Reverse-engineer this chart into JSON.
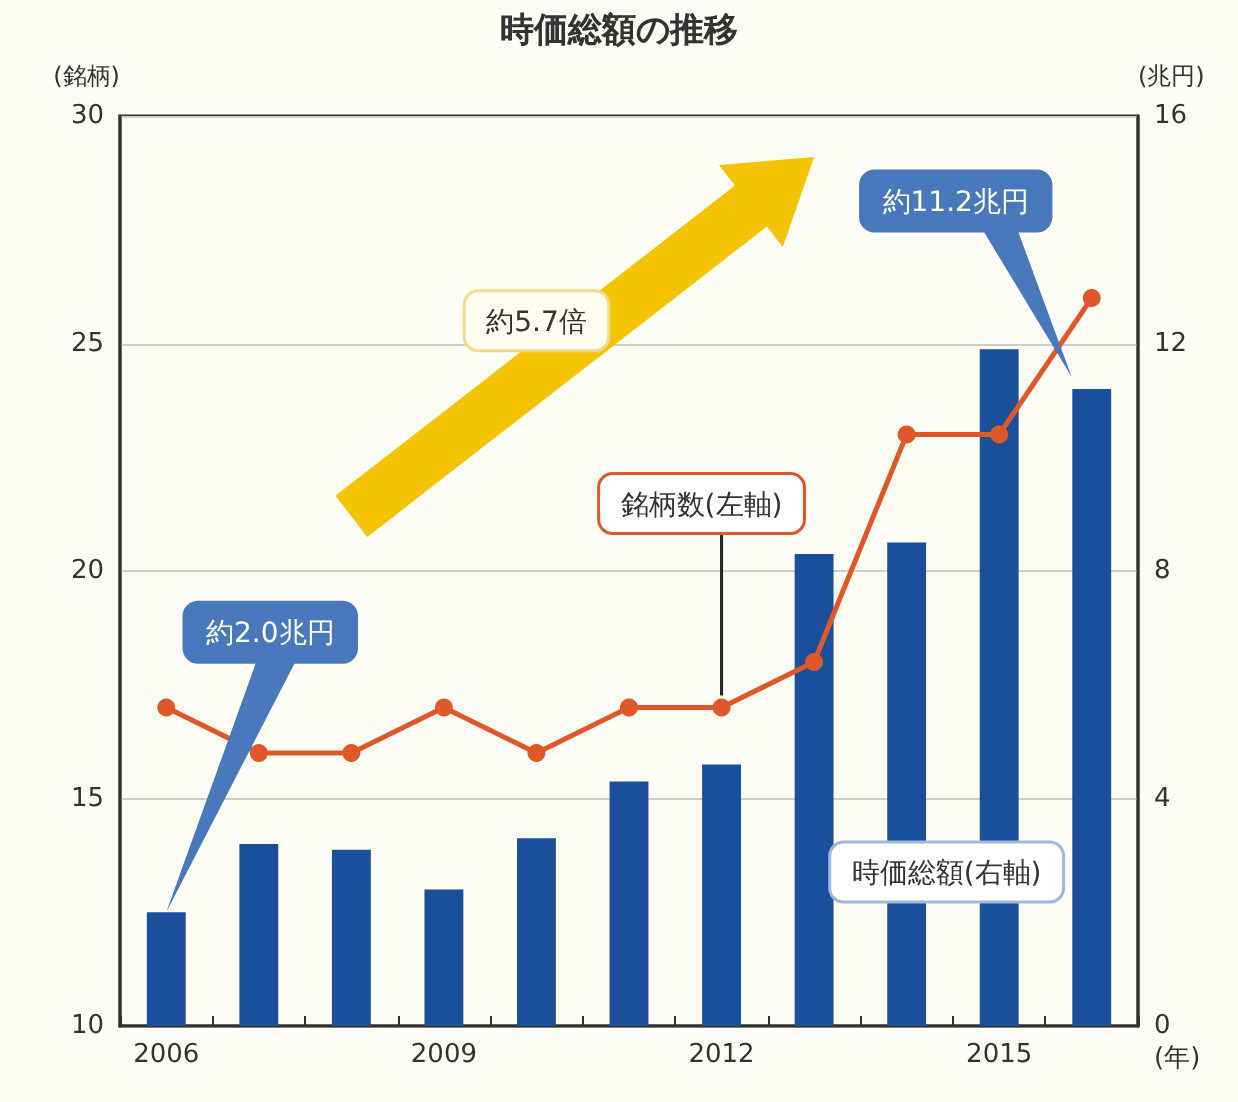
{
  "chart_data": {
    "type": "bar",
    "title": "時価総額の推移",
    "categories": [
      "2006",
      null,
      null,
      "2009",
      null,
      null,
      "2012",
      null,
      null,
      "2015",
      null
    ],
    "xlabel": "(年)",
    "ylabel": "(銘柄)",
    "y2label": "(兆円)",
    "series": [
      {
        "name": "時価総額(右軸)",
        "axis": "y2",
        "color": "#1a4f9c",
        "values": [
          2.0,
          3.2,
          3.1,
          2.4,
          3.3,
          4.3,
          4.6,
          8.3,
          8.5,
          11.9,
          11.2
        ]
      },
      {
        "name": "銘柄数(左軸)",
        "type": "line",
        "color": "#e0582a",
        "values": [
          17,
          16,
          16,
          17,
          16,
          17,
          17,
          18,
          23,
          23,
          26
        ]
      }
    ],
    "ylim": [
      10,
      30
    ],
    "yticks": [
      10,
      15,
      20,
      25,
      30
    ],
    "y2lim": [
      0,
      16
    ],
    "y2ticks": [
      0,
      4,
      8,
      12,
      16
    ],
    "grid": "y",
    "legend": false,
    "marker": "circle",
    "annotations": [
      "約2.0兆円",
      "約11.2兆円",
      "約5.7倍"
    ]
  }
}
